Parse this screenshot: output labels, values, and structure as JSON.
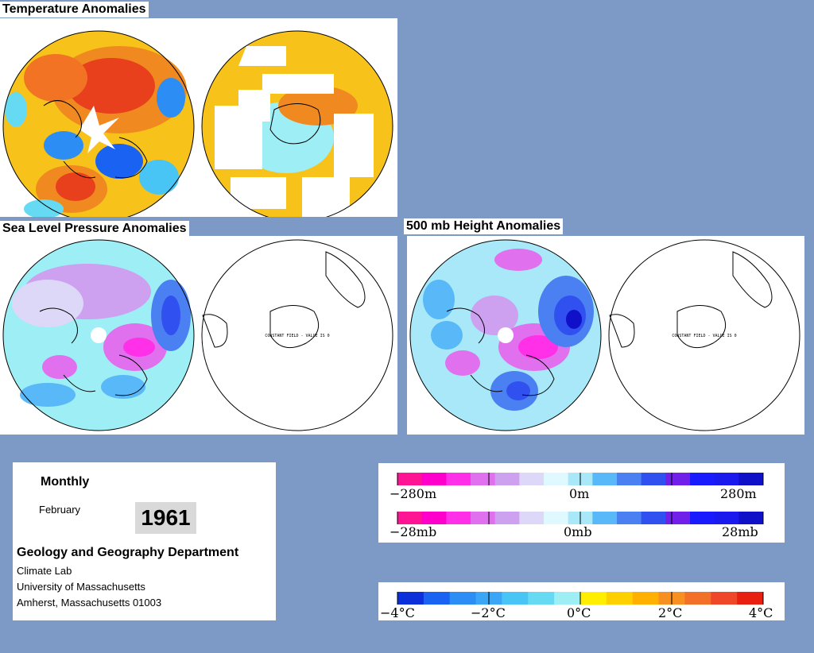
{
  "titles": {
    "temperature": "Temperature Anomalies",
    "slp": "Sea Level Pressure Anomalies",
    "height": "500 mb Height Anomalies"
  },
  "maps": {
    "slp_south_note": "CONSTANT FIELD - VALUE IS 0",
    "height_south_note": "CONSTANT FIELD - VALUE IS 0"
  },
  "info": {
    "period": "Monthly",
    "month": "February",
    "year": "1961",
    "department": "Geology and Geography Department",
    "line1": "Climate Lab",
    "line2": "University of Massachusetts",
    "line3": "Amherst, Massachusetts 01003"
  },
  "legends": {
    "height": {
      "min": "−280m",
      "mid": "0m",
      "max": "280m"
    },
    "pressure": {
      "min": "−28mb",
      "mid": "0mb",
      "max": "28mb"
    },
    "temperature": {
      "l1": "−4°C",
      "l2": "−2°C",
      "l3": "0°C",
      "l4": "2°C",
      "l5": "4°C"
    }
  },
  "colors": {
    "background": "#7d9ac7",
    "warm": "#e8401c",
    "cold": "#0b3fd6",
    "positive_height": "#d060e0",
    "negative_height": "#3b5fe8",
    "neutral": "#cff0ff"
  },
  "scales": {
    "height_pressure": [
      "#ff1493",
      "#ff00cc",
      "#ff30e8",
      "#e070ee",
      "#cda0f0",
      "#ddd8f8",
      "#e0f8ff",
      "#a8e8f8",
      "#58b8f8",
      "#4a80f2",
      "#3050f0",
      "#7020e8",
      "#1a1aff",
      "#1a1aee",
      "#1010c8"
    ],
    "temperature": [
      "#0b2fd8",
      "#1a62f2",
      "#2c8ef4",
      "#3aa6f5",
      "#48c4f5",
      "#66daf3",
      "#9eeef6",
      "#ffee00",
      "#ffd000",
      "#ffb000",
      "#f79020",
      "#f37028",
      "#ef4828",
      "#e82010"
    ]
  }
}
